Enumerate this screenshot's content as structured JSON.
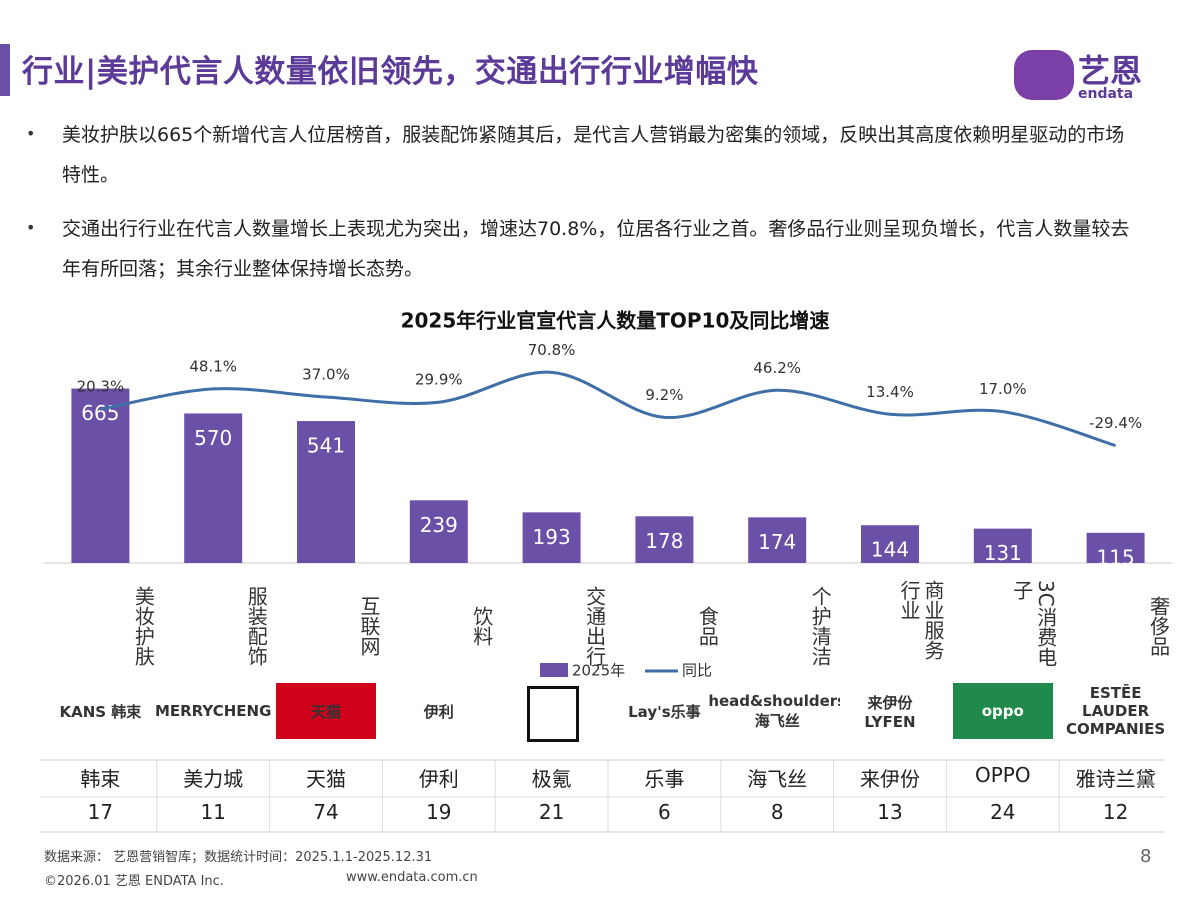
{
  "header": {
    "title": "行业|美护代言人数量依旧领先，交通出行行业增幅快",
    "logo_cn": "艺恩",
    "logo_en": "endata"
  },
  "bullets": [
    "美妆护肤以665个新增代言人位居榜首，服装配饰紧随其后，是代言人营销最为密集的领域，反映出其高度依赖明星驱动的市场特性。",
    "交通出行行业在代言人数量增长上表现尤为突出，增速达70.8%，位居各行业之首。奢侈品行业则呈现负增长，代言人数量较去年有所回落；其余行业整体保持增长态势。"
  ],
  "chart_data": {
    "type": "bar-line",
    "title": "2025年行业官宣代言人数量TOP10及同比增速",
    "categories": [
      "美妆护肤",
      "服装配饰",
      "互联网",
      "饮料",
      "交通出行",
      "食品",
      "个护清洁",
      "商业服务行业",
      "3C消费电子",
      "奢侈品"
    ],
    "series": [
      {
        "name": "2025年",
        "color": "#6a50a7",
        "values": [
          665,
          570,
          541,
          239,
          193,
          178,
          174,
          144,
          131,
          115
        ]
      },
      {
        "name": "同比",
        "color": "#3f6fa6",
        "axis": "y2",
        "values": [
          20.3,
          48.1,
          37.0,
          29.9,
          70.8,
          9.2,
          46.2,
          13.4,
          17.0,
          -29.4
        ],
        "value_labels": [
          "20.3%",
          "48.1%",
          "37.0%",
          "29.9%",
          "70.8%",
          "9.2%",
          "46.2%",
          "13.4%",
          "17.0%",
          "-29.4%"
        ]
      }
    ],
    "ylim": [
      0,
      850
    ],
    "y2lim": [
      -190,
      115
    ],
    "legend": "bottom"
  },
  "brands": [
    {
      "logo": "KANS 韩束",
      "name": "韩束",
      "count": 17
    },
    {
      "logo": "MERRYCHENG",
      "name": "美力城",
      "count": 11
    },
    {
      "logo": "天猫",
      "name": "天猫",
      "count": 74
    },
    {
      "logo": "伊利",
      "name": "伊利",
      "count": 19
    },
    {
      "name": "极氪",
      "count": 21
    },
    {
      "logo": "Lay's乐事",
      "name": "乐事",
      "count": 6
    },
    {
      "logo": "head&shoulders 海飞丝",
      "name": "海飞丝",
      "count": 8
    },
    {
      "logo": "来伊份 LYFEN",
      "name": "来伊份",
      "count": 13
    },
    {
      "logo": "oppo",
      "name": "OPPO",
      "count": 24
    },
    {
      "logo": "ESTĒE LAUDER COMPANIES",
      "name": "雅诗兰黛",
      "count": 12
    }
  ],
  "footer": {
    "source": "数据来源： 艺恩营销智库；数据统计时间：2025.1.1-2025.12.31",
    "copyright": "©2026.01 艺恩 ENDATA Inc.",
    "site": "www.endata.com.cn",
    "page": "8"
  }
}
